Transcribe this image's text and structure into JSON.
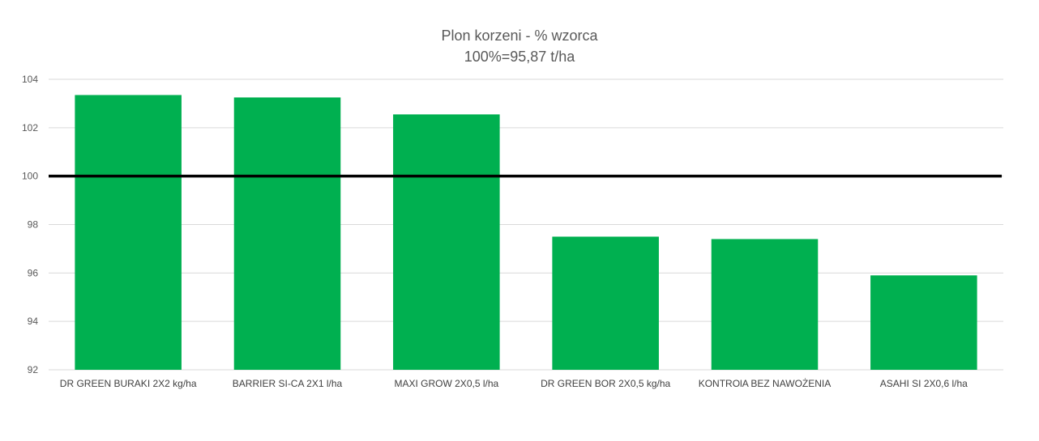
{
  "chart_data": {
    "type": "bar",
    "title": "Plon korzeni - % wzorca",
    "subtitle": "100%=95,87 t/ha",
    "xlabel": "",
    "ylabel": "",
    "ylim": [
      92,
      104
    ],
    "yticks": [
      "92",
      "94",
      "96",
      "98",
      "100",
      "102",
      "104"
    ],
    "grid": true,
    "reference_line": 100,
    "categories": [
      "DR GREEN BURAKI 2X2 kg/ha",
      "BARRIER SI-CA 2X1 l/ha",
      "MAXI GROW 2X0,5 l/ha",
      "DR GREEN BOR 2X0,5 kg/ha",
      "KONTROlA BEZ NAWOŻENIA",
      "ASAHI SI 2X0,6 l/ha"
    ],
    "values": [
      103.35,
      103.25,
      102.55,
      97.5,
      97.4,
      95.9
    ],
    "colors": {
      "bar": "#00B050",
      "reference_line": "#000000",
      "grid": "#D9D9D9",
      "text": "#595959"
    }
  }
}
